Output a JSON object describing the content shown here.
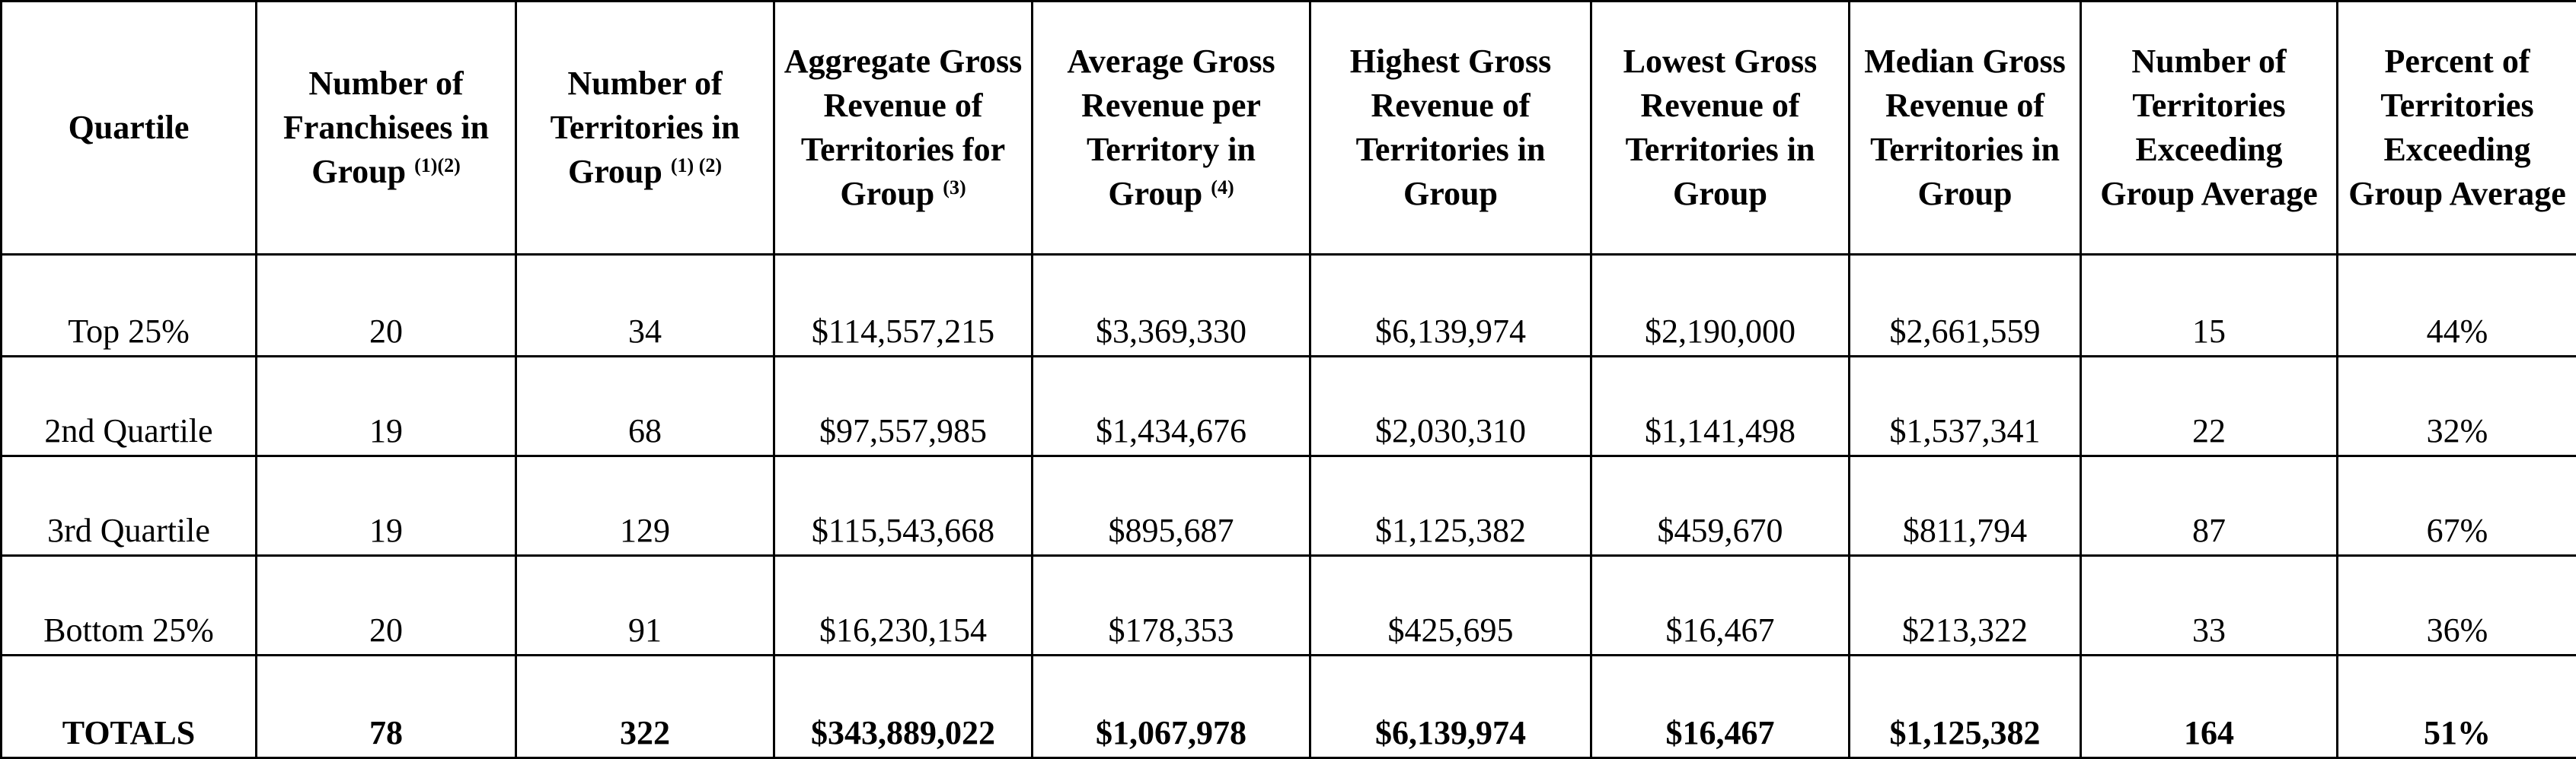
{
  "table": {
    "header": [
      {
        "text": "Quartile"
      },
      {
        "text": "Number of Franchisees in Group",
        "note": "(1)(2)"
      },
      {
        "text": "Number of Territories in Group",
        "note": "(1) (2)"
      },
      {
        "text": "Aggregate Gross Revenue of Territories for Group",
        "note": "(3)"
      },
      {
        "text": "Average Gross Revenue per Territory in Group",
        "note": "(4)"
      },
      {
        "text": "Highest Gross Revenue of Territories in Group"
      },
      {
        "text": "Lowest Gross Revenue of Territories in Group"
      },
      {
        "text": "Median Gross Revenue of Territories in Group"
      },
      {
        "text": "Number of Territories Exceeding Group Average"
      },
      {
        "text": "Percent of Territories Exceeding Group Average"
      }
    ],
    "rows": [
      [
        "Top 25%",
        "20",
        "34",
        "$114,557,215",
        "$3,369,330",
        "$6,139,974",
        "$2,190,000",
        "$2,661,559",
        "15",
        "44%"
      ],
      [
        "2nd Quartile",
        "19",
        "68",
        "$97,557,985",
        "$1,434,676",
        "$2,030,310",
        "$1,141,498",
        "$1,537,341",
        "22",
        "32%"
      ],
      [
        "3rd Quartile",
        "19",
        "129",
        "$115,543,668",
        "$895,687",
        "$1,125,382",
        "$459,670",
        "$811,794",
        "87",
        "67%"
      ],
      [
        "Bottom 25%",
        "20",
        "91",
        "$16,230,154",
        "$178,353",
        "$425,695",
        "$16,467",
        "$213,322",
        "33",
        "36%"
      ]
    ],
    "totals": [
      "TOTALS",
      "78",
      "322",
      "$343,889,022",
      "$1,067,978",
      "$6,139,974",
      "$16,467",
      "$1,125,382",
      "164",
      "51%"
    ]
  }
}
